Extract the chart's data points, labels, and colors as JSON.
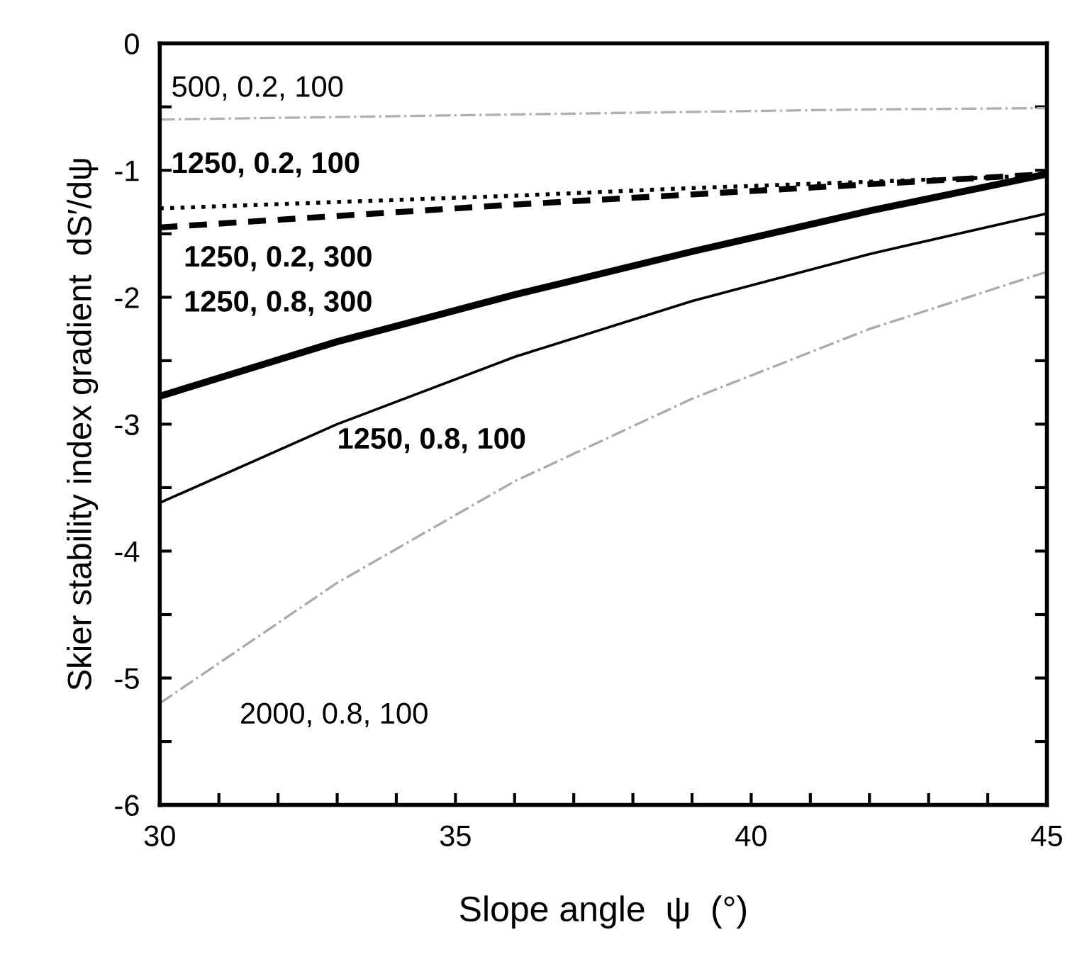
{
  "chart_data": {
    "type": "line",
    "xlabel": "Slope angle  ψ  (°)",
    "ylabel": "Skier stability index gradient  dS′/dψ",
    "x": [
      30,
      33,
      36,
      39,
      42,
      45
    ],
    "xlim": [
      30,
      45
    ],
    "xticks": [
      30,
      {
        "value": 31,
        "label": null
      },
      {
        "value": 32,
        "label": null
      },
      {
        "value": 33,
        "label": null
      },
      {
        "value": 34,
        "label": null
      },
      35,
      {
        "value": 36,
        "label": null
      },
      {
        "value": 37,
        "label": null
      },
      {
        "value": 38,
        "label": null
      },
      {
        "value": 39,
        "label": null
      },
      40,
      {
        "value": 41,
        "label": null
      },
      {
        "value": 42,
        "label": null
      },
      {
        "value": 43,
        "label": null
      },
      {
        "value": 44,
        "label": null
      },
      45
    ],
    "ylim": [
      -6,
      0
    ],
    "yticks": [
      -6,
      {
        "value": -5.5,
        "label": null
      },
      -5,
      {
        "value": -4.5,
        "label": null
      },
      -4,
      {
        "value": -3.5,
        "label": null
      },
      -3,
      {
        "value": -2.5,
        "label": null
      },
      -2,
      {
        "value": -1.5,
        "label": null
      },
      -1,
      {
        "value": -0.5,
        "label": null
      },
      0
    ],
    "grid": false,
    "legend": false,
    "series": [
      {
        "name": "500, 0.2, 100",
        "color": "#b0b0b0",
        "line_style": "dashdot",
        "values": [
          -0.6,
          -0.58,
          -0.56,
          -0.54,
          -0.52,
          -0.51
        ]
      },
      {
        "name": "1250, 0.2, 100",
        "color": "#000000",
        "line_style": "dotted",
        "values": [
          -1.3,
          -1.25,
          -1.2,
          -1.14,
          -1.09,
          -1.04
        ]
      },
      {
        "name": "1250, 0.2, 300",
        "color": "#000000",
        "line_style": "dashed",
        "values": [
          -1.45,
          -1.36,
          -1.27,
          -1.19,
          -1.11,
          -1.03
        ]
      },
      {
        "name": "1250, 0.8, 300",
        "color": "#000000",
        "line_style": "solid",
        "values": [
          -2.78,
          -2.35,
          -1.98,
          -1.64,
          -1.32,
          -1.03
        ]
      },
      {
        "name": "1250, 0.8, 100",
        "color": "#000000",
        "line_style": "solid",
        "values": [
          -3.62,
          -3.0,
          -2.47,
          -2.03,
          -1.66,
          -1.34
        ]
      },
      {
        "name": "2000, 0.8, 100",
        "color": "#aaaaaa",
        "line_style": "dashdot",
        "values": [
          -5.2,
          -4.25,
          -3.45,
          -2.8,
          -2.25,
          -1.8
        ]
      }
    ]
  }
}
